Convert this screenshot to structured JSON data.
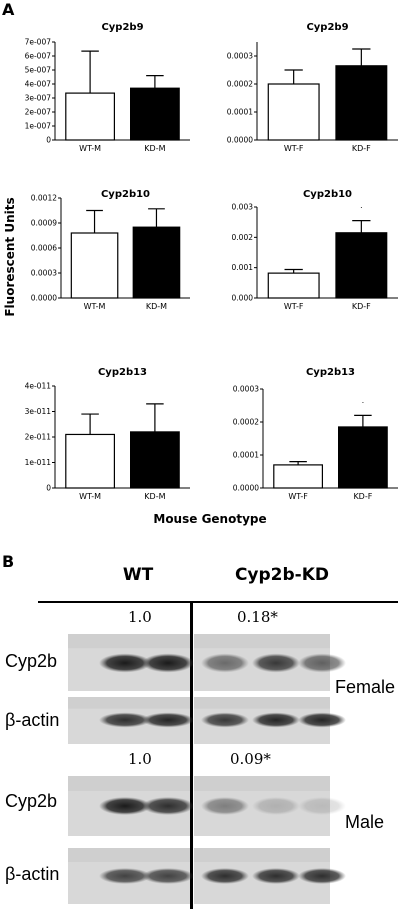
{
  "panel_a_letter": "A",
  "panel_b_letter": "B",
  "y_axis_label": "Fluorescent Units",
  "x_axis_label": "Mouse Genotype",
  "chart_data": [
    {
      "type": "bar",
      "title": "Cyp2b9",
      "categories": [
        "WT-M",
        "KD-M"
      ],
      "values": [
        3.35e-07,
        3.7e-07
      ],
      "errors": [
        3e-07,
        9e-08
      ],
      "fills": [
        "#ffffff",
        "#000000"
      ],
      "ylim": [
        0,
        7e-07
      ],
      "yticks": [
        0,
        1e-07,
        2e-07,
        3e-07,
        4e-07,
        5e-07,
        6e-07,
        7e-07
      ],
      "yticklabels": [
        "0",
        "1e-007",
        "2e-007",
        "3e-007",
        "4e-007",
        "5e-007",
        "6e-007",
        "7e-007"
      ],
      "sig": ""
    },
    {
      "type": "bar",
      "title": "Cyp2b9",
      "categories": [
        "WT-F",
        "KD-F"
      ],
      "values": [
        0.0002,
        0.000265
      ],
      "errors": [
        5e-05,
        6e-05
      ],
      "fills": [
        "#ffffff",
        "#000000"
      ],
      "ylim": [
        0,
        0.00035
      ],
      "yticks": [
        0,
        0.0001,
        0.0002,
        0.0003
      ],
      "yticklabels": [
        "0.0000",
        "0.0001",
        "0.0002",
        "0.0003"
      ],
      "sig": ""
    },
    {
      "type": "bar",
      "title": "Cyp2b10",
      "categories": [
        "WT-M",
        "KD-M"
      ],
      "values": [
        0.00078,
        0.00085
      ],
      "errors": [
        0.00027,
        0.00022
      ],
      "fills": [
        "#ffffff",
        "#000000"
      ],
      "ylim": [
        0,
        0.0012
      ],
      "yticks": [
        0,
        0.0003,
        0.0006,
        0.0009,
        0.0012
      ],
      "yticklabels": [
        "0.0000",
        "0.0003",
        "0.0006",
        "0.0009",
        "0.0012"
      ],
      "sig": ""
    },
    {
      "type": "bar",
      "title": "Cyp2b10",
      "categories": [
        "WT-F",
        "KD-F"
      ],
      "values": [
        0.00082,
        0.00215
      ],
      "errors": [
        0.00012,
        0.0004
      ],
      "fills": [
        "#ffffff",
        "#000000"
      ],
      "ylim": [
        0,
        0.003
      ],
      "yticks": [
        0,
        0.001,
        0.002,
        0.003
      ],
      "yticklabels": [
        "0.000",
        "0.001",
        "0.002",
        "0.003"
      ],
      "sig": "·"
    },
    {
      "type": "bar",
      "title": "Cyp2b13",
      "categories": [
        "WT-M",
        "KD-M"
      ],
      "values": [
        2.1e-11,
        2.2e-11
      ],
      "errors": [
        8e-12,
        1.1e-11
      ],
      "fills": [
        "#ffffff",
        "#000000"
      ],
      "ylim": [
        0,
        4e-11
      ],
      "yticks": [
        0,
        1e-11,
        2e-11,
        3e-11,
        4e-11
      ],
      "yticklabels": [
        "0",
        "1e-011",
        "2e-011",
        "3e-011",
        "4e-011"
      ],
      "sig": ""
    },
    {
      "type": "bar",
      "title": "Cyp2b13",
      "categories": [
        "WT-F",
        "KD-F"
      ],
      "values": [
        7e-05,
        0.000185
      ],
      "errors": [
        1e-05,
        3.5e-05
      ],
      "fills": [
        "#ffffff",
        "#000000"
      ],
      "ylim": [
        0,
        0.0003
      ],
      "yticks": [
        0,
        0.0001,
        0.0002,
        0.0003
      ],
      "yticklabels": [
        "0.0000",
        "0.0001",
        "0.0002",
        "0.0003"
      ],
      "sig": "·"
    }
  ],
  "blot": {
    "col_wt": "WT",
    "col_kd": "Cyp2b-KD",
    "female_ratio_wt": "1.0",
    "female_ratio_kd": "0.18*",
    "male_ratio_wt": "1.0",
    "male_ratio_kd": "0.09*",
    "lane_cyp": "Cyp2b",
    "lane_actin": "β-actin",
    "label_female": "Female",
    "label_male": "Male",
    "band_intensity": {
      "female_cyp": [
        0.95,
        0.95,
        0.55,
        0.8,
        0.6
      ],
      "female_actin": [
        0.85,
        0.9,
        0.8,
        0.9,
        0.9
      ],
      "male_cyp": [
        0.95,
        0.85,
        0.45,
        0.2,
        0.15
      ],
      "male_actin": [
        0.75,
        0.75,
        0.85,
        0.85,
        0.85
      ]
    }
  }
}
